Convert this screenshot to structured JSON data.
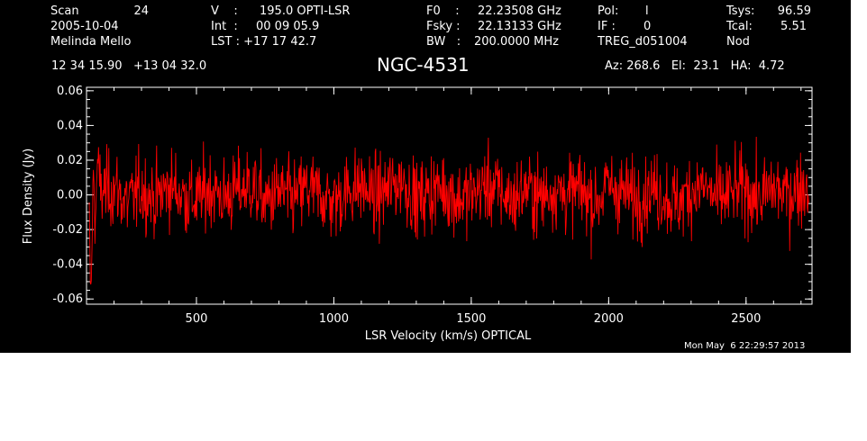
{
  "header": {
    "row1": {
      "scan_label": "Scan",
      "scan_value": "24",
      "v_label": "V    :",
      "v_value": "195.0 OPTI-LSR",
      "f0_label": "F0    :",
      "f0_value": "22.23508 GHz",
      "pol_label": "Pol:",
      "pol_value": "l",
      "tsys_label": "Tsys:",
      "tsys_value": "96.59"
    },
    "row2": {
      "date": "2005-10-04",
      "int_label": "Int  :",
      "int_value": "00 09 05.9",
      "fsky_label": "Fsky :",
      "fsky_value": "22.13133 GHz",
      "if_label": "IF :",
      "if_value": "0",
      "tcal_label": "Tcal:",
      "tcal_value": "5.51"
    },
    "row3": {
      "observer": "Melinda Mello",
      "lst_label": "LST : +17 17 42.7",
      "bw_label": "BW   :",
      "bw_value": "200.0000 MHz",
      "proc": "TREG_d051004",
      "nod": "Nod"
    },
    "coords": "12 34 15.90   +13 04 32.0",
    "source": "NGC-4531",
    "azelha": "Az: 268.6   El:  23.1   HA:  4.72"
  },
  "timestamp": "Mon May  6 22:29:57 2013",
  "colors": {
    "background": "#000000",
    "axes": "#ffffff",
    "series": "#ff0000"
  },
  "chart_data": {
    "type": "line",
    "title": "NGC-4531",
    "xlabel": "LSR Velocity (km/s) OPTICAL",
    "ylabel": "Flux Density (Jy)",
    "xlim": [
      100,
      2740
    ],
    "ylim": [
      -0.063,
      0.062
    ],
    "xticks": [
      500,
      1000,
      1500,
      2000,
      2500
    ],
    "xtick_labels": [
      "500",
      "1000",
      "1500",
      "2000",
      "2500"
    ],
    "yticks": [
      -0.06,
      -0.04,
      -0.02,
      0.0,
      0.02,
      0.04,
      0.06
    ],
    "ytick_labels": [
      "-0.06",
      "-0.04",
      "-0.02",
      "0.00",
      "0.02",
      "0.04",
      "0.06"
    ],
    "series": [
      {
        "color": "#ff0000",
        "x": [
          110,
          115,
          120,
          125,
          130,
          140,
          160,
          200,
          250,
          300,
          350,
          400,
          450,
          500,
          550,
          600,
          650,
          700,
          750,
          800,
          850,
          900,
          950,
          1000,
          1050,
          1100,
          1150,
          1200,
          1250,
          1300,
          1350,
          1400,
          1450,
          1500,
          1550,
          1600,
          1650,
          1700,
          1750,
          1800,
          1850,
          1900,
          1950,
          2000,
          2050,
          2100,
          2150,
          2200,
          2250,
          2300,
          2350,
          2400,
          2450,
          2500,
          2550,
          2600,
          2650,
          2700,
          2730
        ],
        "y": [
          -0.01,
          -0.057,
          -0.035,
          0.018,
          -0.025,
          0.02,
          0.005,
          0.012,
          -0.015,
          0.01,
          -0.008,
          0.015,
          0.0,
          -0.01,
          0.012,
          -0.005,
          0.008,
          0.015,
          -0.012,
          0.005,
          -0.008,
          0.01,
          0.0,
          -0.012,
          0.008,
          0.015,
          -0.005,
          0.01,
          0.025,
          -0.01,
          0.005,
          0.012,
          -0.008,
          0.0,
          0.015,
          0.008,
          -0.01,
          0.012,
          -0.005,
          0.01,
          0.0,
          0.008,
          -0.012,
          0.015,
          0.005,
          -0.008,
          0.01,
          0.0,
          -0.015,
          0.008,
          0.012,
          -0.01,
          0.005,
          0.01,
          -0.008,
          0.012,
          0.0,
          0.015,
          0.01
        ]
      }
    ]
  }
}
